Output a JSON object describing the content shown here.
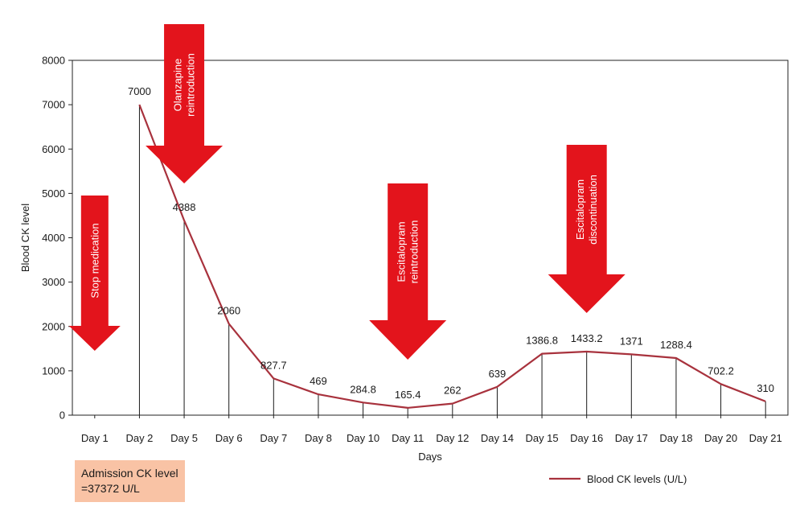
{
  "chart_data": {
    "type": "line",
    "title": "",
    "xlabel": "Days",
    "ylabel": "Blood CK level",
    "ylim": [
      0,
      8000
    ],
    "yticks": [
      0,
      1000,
      2000,
      3000,
      4000,
      5000,
      6000,
      7000,
      8000
    ],
    "grid": false,
    "legend_position": "bottom-right",
    "categories": [
      "Day 1",
      "Day 2",
      "Day 5",
      "Day 6",
      "Day 7",
      "Day 8",
      "Day 10",
      "Day 11",
      "Day 12",
      "Day 14",
      "Day 15",
      "Day 16",
      "Day 17",
      "Day 18",
      "Day 20",
      "Day 21"
    ],
    "series": [
      {
        "name": "Blood CK levels (U/L)",
        "color": "#a8323d",
        "values": [
          null,
          7000,
          4388,
          2060,
          827.7,
          469,
          284.8,
          165.4,
          262,
          639,
          1386.8,
          1433.2,
          1371,
          1288.4,
          702.2,
          310
        ],
        "labels": [
          "",
          "7000",
          "4388",
          "2060",
          "827.7",
          "469",
          "284.8",
          "165.4",
          "262",
          "639",
          "1386.8",
          "1433.2",
          "1371",
          "1288.4",
          "702.2",
          "310"
        ]
      }
    ],
    "annotations": [
      {
        "category": "Day 1",
        "text_lines": [
          "Stop medication"
        ],
        "color": "#e3141c"
      },
      {
        "category": "Day 5",
        "text_lines": [
          "Olanzapine",
          "reintroduction"
        ],
        "color": "#e3141c"
      },
      {
        "category": "Day 11",
        "text_lines": [
          "Escitalopram",
          "reintroduction"
        ],
        "color": "#e3141c"
      },
      {
        "category": "Day 16",
        "text_lines": [
          "Escitalopram",
          "discontinuation"
        ],
        "color": "#e3141c"
      }
    ],
    "note": {
      "lines": [
        "Admission CK level",
        "=37372 U/L"
      ],
      "background": "#f9c3a5"
    }
  }
}
